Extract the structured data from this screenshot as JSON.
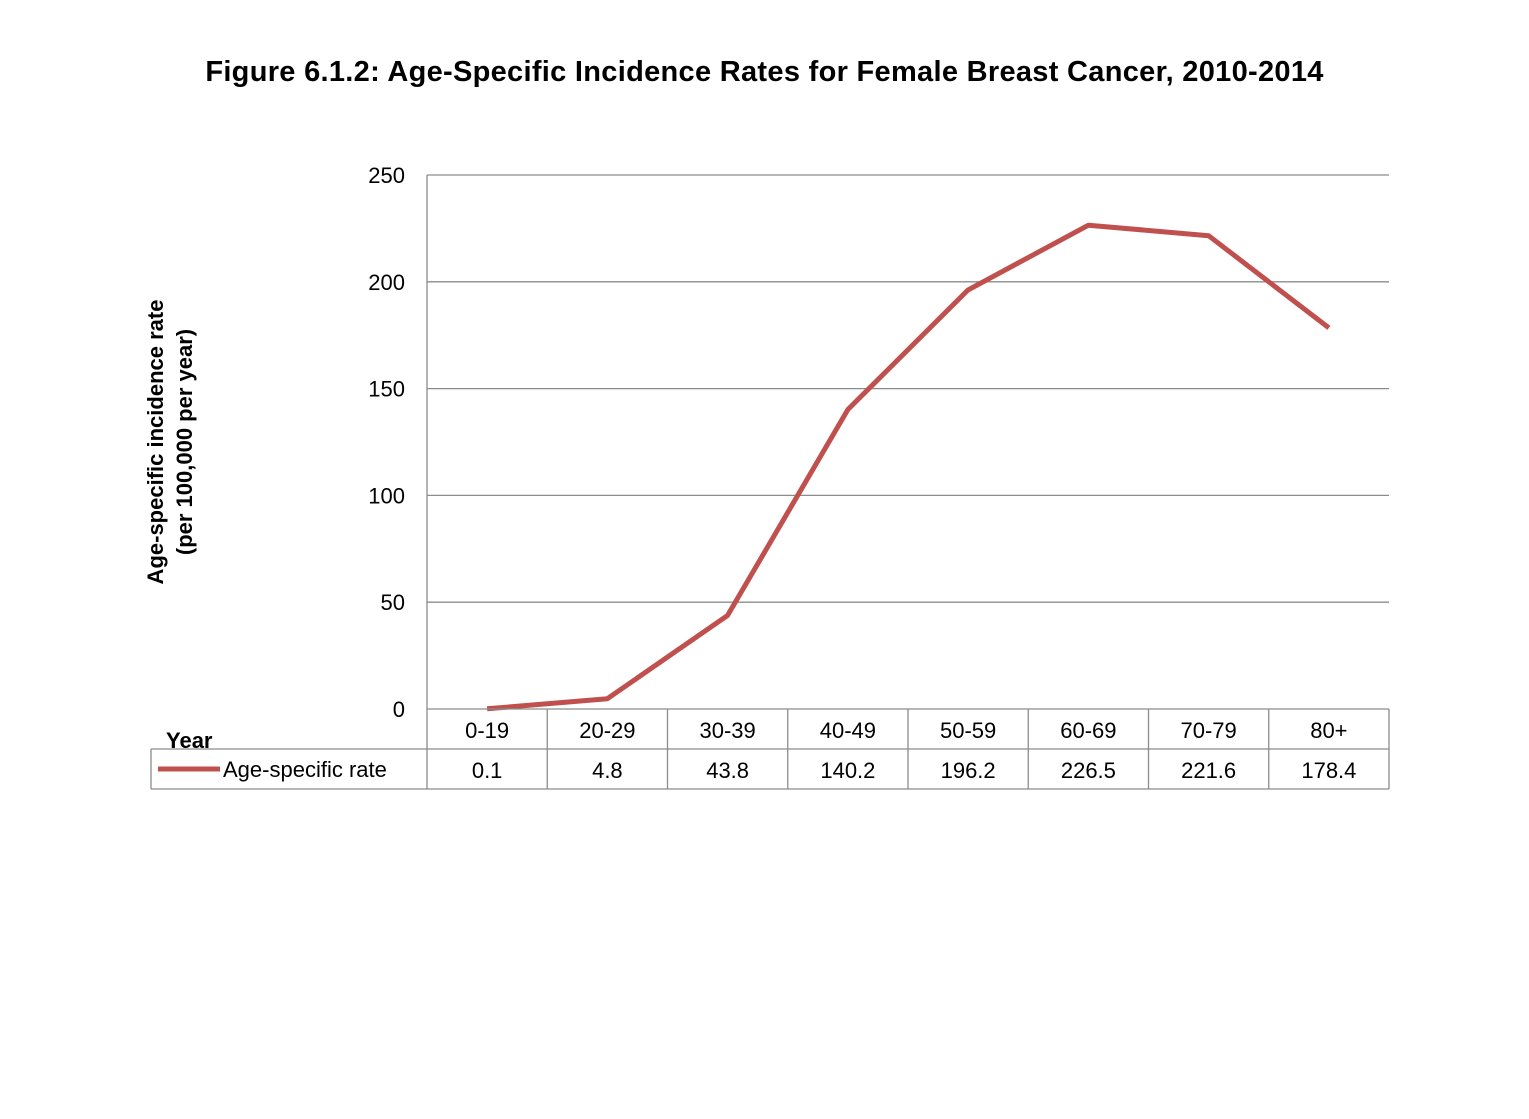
{
  "title": "Figure 6.1.2: Age-Specific Incidence Rates for Female Breast Cancer, 2010-2014",
  "chart_data": {
    "type": "line",
    "title": "Figure 6.1.2: Age-Specific Incidence Rates for Female Breast Cancer, 2010-2014",
    "xlabel": "Year",
    "ylabel": "Age-specific incidence rate",
    "ylabel_sub": "(per 100,000 per year)",
    "categories": [
      "0-19",
      "20-29",
      "30-39",
      "40-49",
      "50-59",
      "60-69",
      "70-79",
      "80+"
    ],
    "series": [
      {
        "name": "Age-specific rate",
        "values": [
          0.1,
          4.8,
          43.8,
          140.2,
          196.2,
          226.5,
          221.6,
          178.4
        ],
        "labels": [
          "0.1",
          "4.8",
          "43.8",
          "140.2",
          "196.2",
          "226.5",
          "221.6",
          "178.4"
        ],
        "color": "#c0504d"
      }
    ],
    "ylim": [
      0,
      250
    ],
    "yticks": [
      "0",
      "50",
      "100",
      "150",
      "200",
      "250"
    ],
    "grid": true,
    "legend": "data-table"
  }
}
